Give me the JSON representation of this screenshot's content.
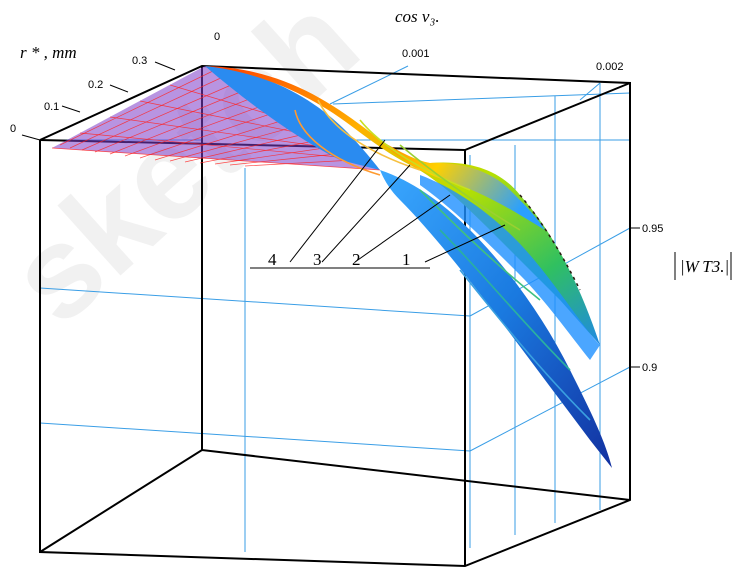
{
  "chart_data": {
    "type": "surface",
    "x_axis": {
      "label": "cos v₃.",
      "ticks": [
        "0",
        "0.001",
        "0.002"
      ],
      "range": [
        0,
        0.002
      ]
    },
    "depth_axis": {
      "label": "r * , mm",
      "ticks": [
        "0",
        "0.1",
        "0.2",
        "0.3"
      ],
      "range": [
        0,
        0.3
      ]
    },
    "z_axis": {
      "label": "|W T3.|",
      "ticks": [
        "0.9",
        "0.95"
      ],
      "range": [
        0.86,
        1.0
      ]
    },
    "curve_labels": [
      "4",
      "3",
      "2",
      "1"
    ],
    "grid": true
  },
  "watermark": "sketch"
}
